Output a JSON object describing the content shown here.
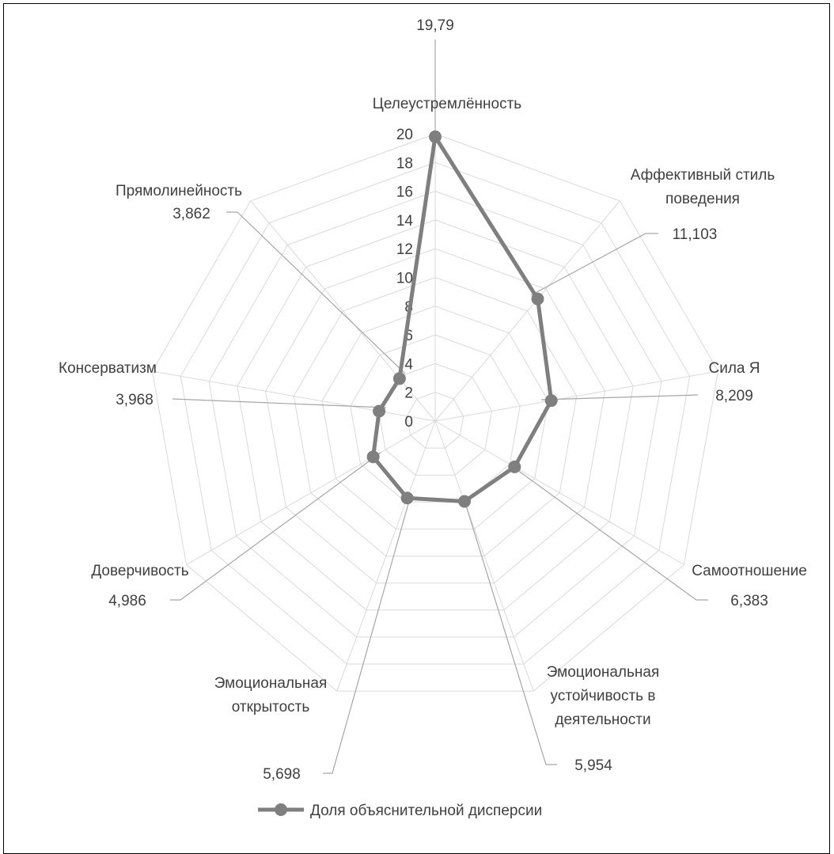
{
  "chart_data": {
    "type": "radar",
    "categories": [
      "Целеустремлённость",
      "Аффективный стиль поведения",
      "Сила Я",
      "Самоотношение",
      "Эмоциональная устойчивость в деятельности",
      "Эмоциональная открытость",
      "Доверчивость",
      "Консерватизм",
      "Прямолинейность"
    ],
    "category_lines": [
      [
        "Целеустремлённость"
      ],
      [
        "Аффективный стиль",
        "поведения"
      ],
      [
        "Сила Я"
      ],
      [
        "Самоотношение"
      ],
      [
        "Эмоциональная",
        "устойчивость в",
        "деятельности"
      ],
      [
        "Эмоциональная",
        "открытость"
      ],
      [
        "Доверчивость"
      ],
      [
        "Консерватизм"
      ],
      [
        "Прямолинейность"
      ]
    ],
    "series": [
      {
        "name": "Доля объяснительной дисперсии",
        "values": [
          19.79,
          11.103,
          8.209,
          6.383,
          5.954,
          5.698,
          4.986,
          3.968,
          3.862
        ],
        "data_labels": [
          "19,79",
          "11,103",
          "8,209",
          "6,383",
          "5,954",
          "5,698",
          "4,986",
          "3,968",
          "3,862"
        ]
      }
    ],
    "rlim": [
      0,
      20
    ],
    "ticks": [
      "0",
      "2",
      "4",
      "6",
      "8",
      "10",
      "12",
      "14",
      "16",
      "18",
      "20"
    ],
    "grid": true,
    "legend": "bottom",
    "colors": {
      "series": "#7f7f7f",
      "grid": "#d9d9d9",
      "text": "#404040"
    }
  }
}
